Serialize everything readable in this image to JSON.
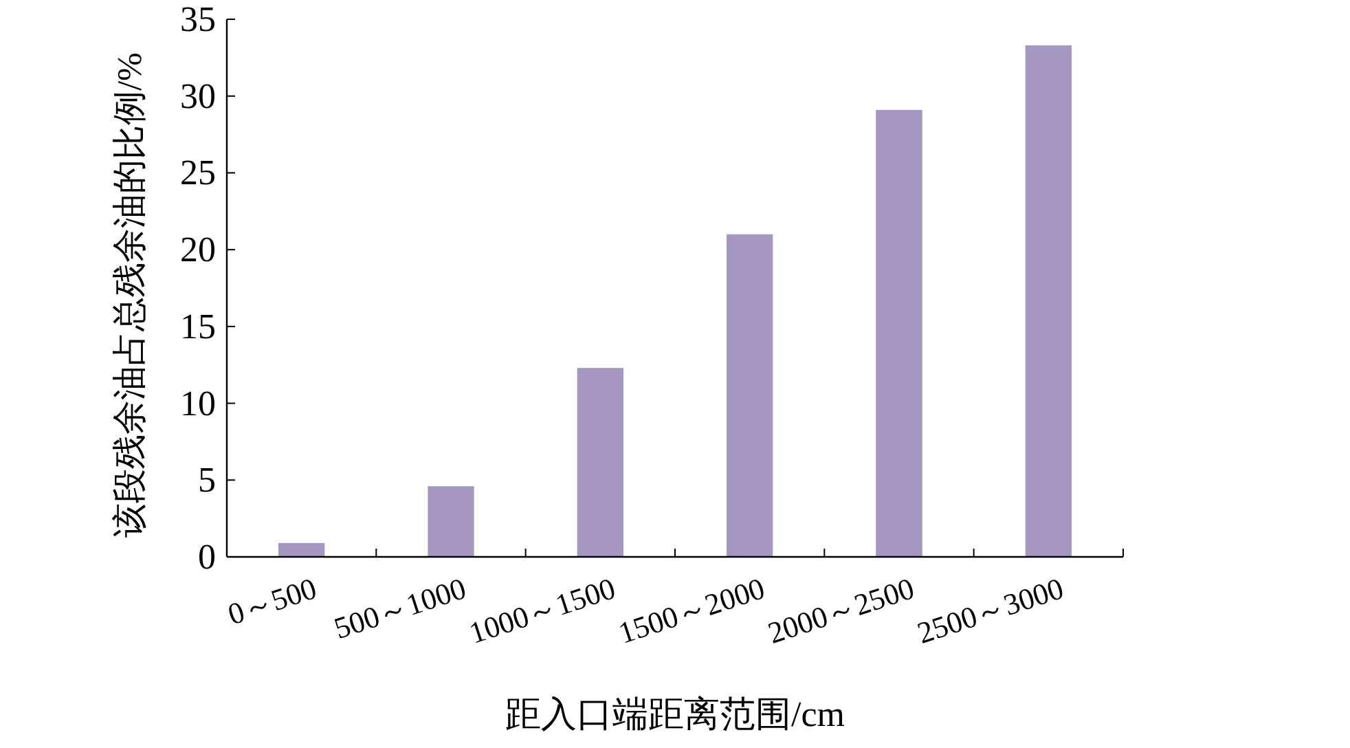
{
  "chart_data": {
    "type": "bar",
    "categories": [
      "0～500",
      "500～1000",
      "1000～1500",
      "1500～2000",
      "2000～2500",
      "2500～3000"
    ],
    "values": [
      0.9,
      4.6,
      12.3,
      21.0,
      29.1,
      33.3
    ],
    "color": "#a597c0",
    "xlabel": "距入口端距离范围/cm",
    "ylabel": "该段残余油占总残余油的比例/%",
    "ylim": [
      0,
      35
    ],
    "yticks": [
      0,
      5,
      10,
      15,
      20,
      25,
      30,
      35
    ]
  }
}
